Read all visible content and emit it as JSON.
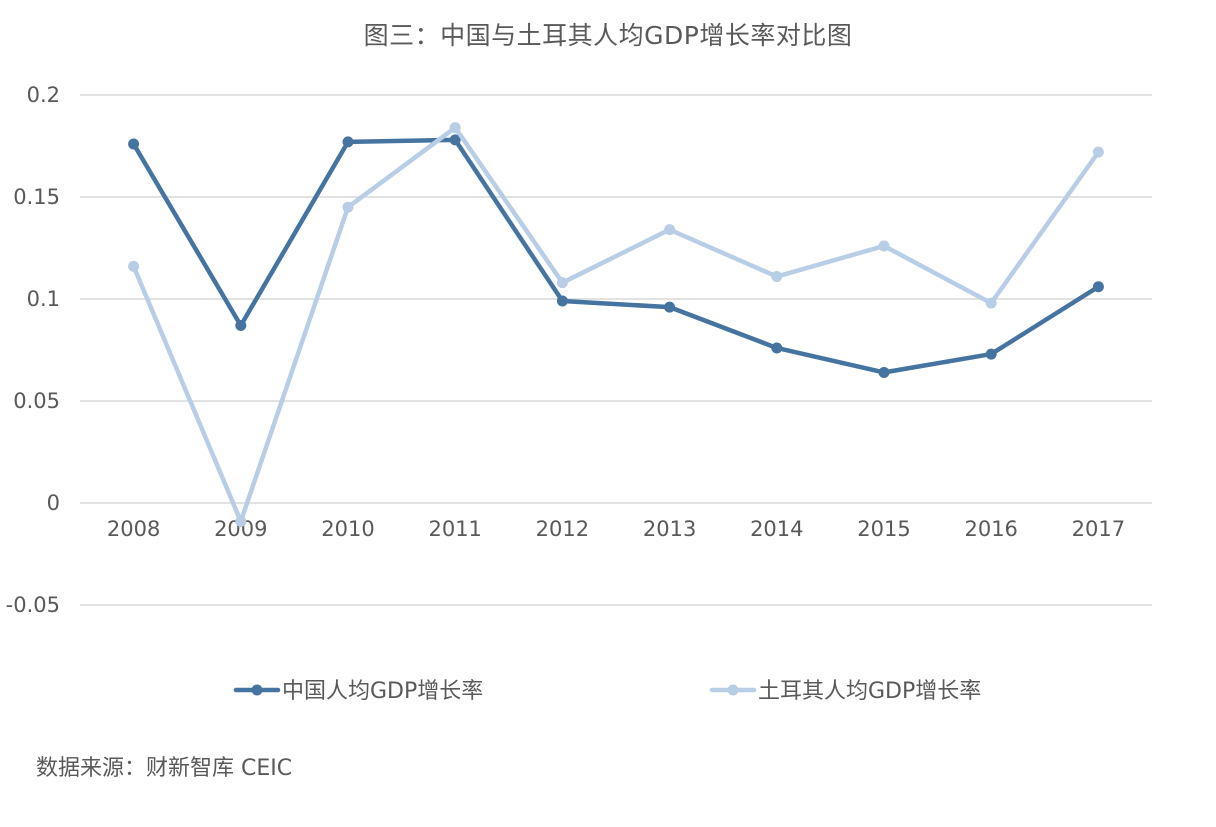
{
  "chart_data": {
    "type": "line",
    "title": "图三：中国与土耳其人均GDP增长率对比图",
    "categories": [
      "2008",
      "2009",
      "2010",
      "2011",
      "2012",
      "2013",
      "2014",
      "2015",
      "2016",
      "2017"
    ],
    "series": [
      {
        "name": "中国人均GDP增长率",
        "color": "#4674A1",
        "values": [
          0.176,
          0.087,
          0.177,
          0.178,
          0.099,
          0.096,
          0.076,
          0.064,
          0.073,
          0.106
        ]
      },
      {
        "name": "土耳其人均GDP增长率",
        "color": "#B8CDE6",
        "values": [
          0.116,
          -0.009,
          0.145,
          0.184,
          0.108,
          0.134,
          0.111,
          0.126,
          0.098,
          0.172
        ]
      }
    ],
    "yticks": [
      "0.2",
      "0.15",
      "0.1",
      "0.05",
      "0",
      "-0.05"
    ],
    "ylim": [
      -0.05,
      0.2
    ],
    "grid": true,
    "legend_position": "bottom"
  },
  "source": "数据来源：财新智库 CEIC"
}
